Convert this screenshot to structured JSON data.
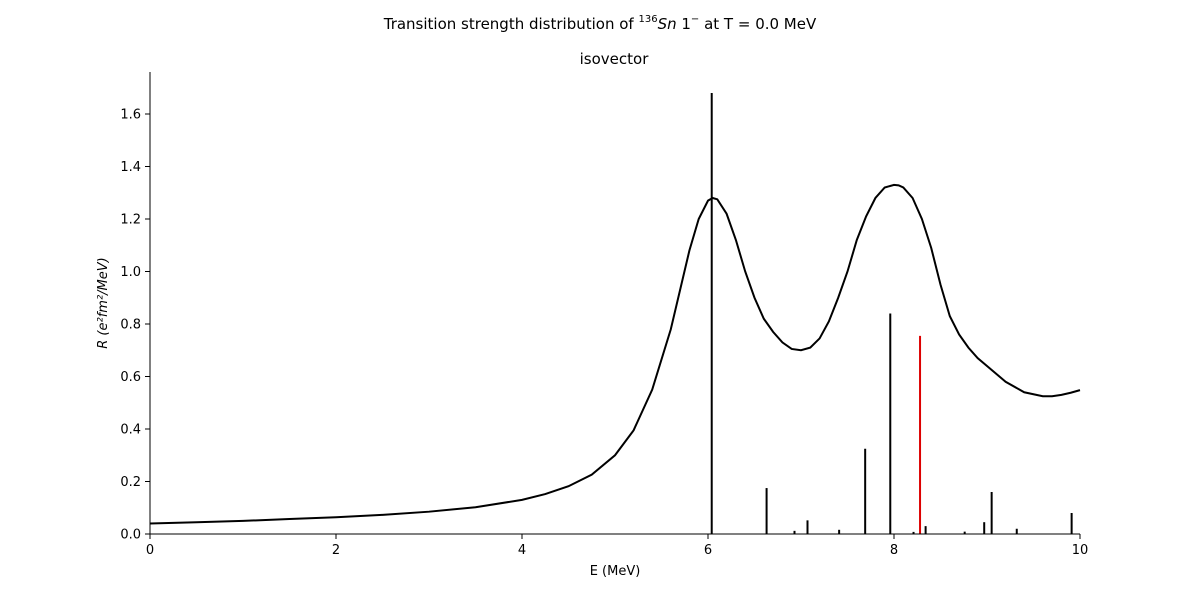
{
  "chart_data": {
    "type": "line",
    "title": {
      "prefix": "Transition strength distribution of ",
      "mass_number": "136",
      "element": "Sn",
      "multipolarity": "1",
      "parity": "−",
      "suffix": " at T = 0.0 MeV"
    },
    "subtitle": "isovector",
    "xlabel": "E (MeV)",
    "ylabel": "R (e²fm²/MeV)",
    "xlim": [
      0,
      10
    ],
    "ylim": [
      0,
      1.76
    ],
    "x_ticks": [
      0,
      2,
      4,
      6,
      8,
      10
    ],
    "x_tick_labels": [
      "0",
      "2",
      "4",
      "6",
      "8",
      "10"
    ],
    "y_ticks": [
      0.0,
      0.2,
      0.4,
      0.6,
      0.8,
      1.0,
      1.2,
      1.4,
      1.6
    ],
    "y_tick_labels": [
      "0.0",
      "0.2",
      "0.4",
      "0.6",
      "0.8",
      "1.0",
      "1.2",
      "1.4",
      "1.6"
    ],
    "grid": false,
    "series": [
      {
        "kind": "curve",
        "color": "#000000",
        "x": [
          0,
          0.5,
          1,
          1.5,
          2,
          2.5,
          3,
          3.5,
          4,
          4.25,
          4.5,
          4.75,
          5,
          5.2,
          5.4,
          5.6,
          5.8,
          5.9,
          6.0,
          6.05,
          6.1,
          6.2,
          6.3,
          6.4,
          6.5,
          6.6,
          6.7,
          6.8,
          6.9,
          7.0,
          7.1,
          7.2,
          7.3,
          7.4,
          7.5,
          7.6,
          7.7,
          7.8,
          7.9,
          8.0,
          8.05,
          8.1,
          8.2,
          8.3,
          8.4,
          8.5,
          8.6,
          8.7,
          8.8,
          8.9,
          9.0,
          9.2,
          9.4,
          9.6,
          9.7,
          9.8,
          9.9,
          10.0
        ],
        "y": [
          0.04,
          0.045,
          0.05,
          0.057,
          0.064,
          0.073,
          0.085,
          0.102,
          0.13,
          0.152,
          0.182,
          0.226,
          0.3,
          0.395,
          0.55,
          0.78,
          1.08,
          1.2,
          1.27,
          1.28,
          1.275,
          1.22,
          1.12,
          1.0,
          0.9,
          0.82,
          0.77,
          0.73,
          0.705,
          0.7,
          0.71,
          0.745,
          0.81,
          0.9,
          1.0,
          1.12,
          1.21,
          1.28,
          1.32,
          1.33,
          1.328,
          1.32,
          1.28,
          1.2,
          1.09,
          0.95,
          0.83,
          0.76,
          0.71,
          0.67,
          0.64,
          0.58,
          0.54,
          0.525,
          0.525,
          0.53,
          0.538,
          0.548
        ]
      },
      {
        "kind": "stems",
        "color": "#000000",
        "x": [
          6.04,
          6.63,
          6.93,
          7.07,
          7.41,
          7.69,
          7.96,
          8.21,
          8.34,
          8.76,
          8.97,
          9.05,
          9.32,
          9.91
        ],
        "y": [
          1.68,
          0.175,
          0.012,
          0.052,
          0.016,
          0.325,
          0.84,
          0.008,
          0.03,
          0.009,
          0.045,
          0.16,
          0.02,
          0.08
        ]
      },
      {
        "kind": "stems",
        "color": "#dd0000",
        "x": [
          8.28
        ],
        "y": [
          0.755
        ]
      }
    ]
  }
}
